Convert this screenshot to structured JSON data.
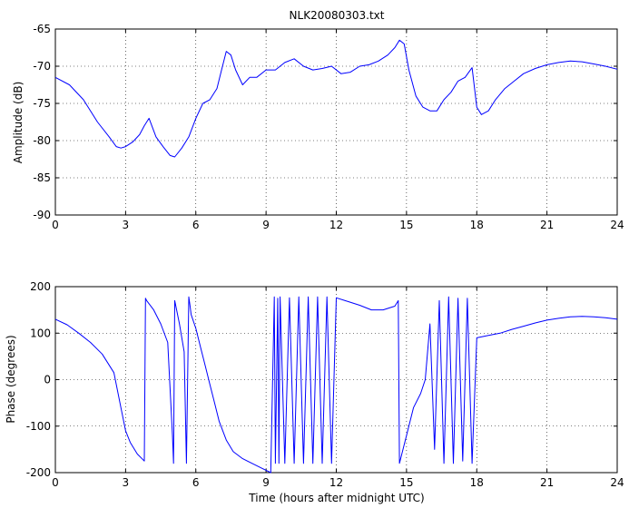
{
  "chart_data": [
    {
      "type": "line",
      "title": "NLK20080303.txt",
      "xlabel": "",
      "ylabel": "Amplitude (dB)",
      "xlim": [
        0,
        24
      ],
      "ylim": [
        -90,
        -65
      ],
      "x_ticks": [
        0,
        3,
        6,
        9,
        12,
        15,
        18,
        21,
        24
      ],
      "y_ticks": [
        -90,
        -85,
        -80,
        -75,
        -70,
        -65
      ],
      "grid": "dotted",
      "line_color": "#0000ff",
      "series": [
        {
          "x": [
            0,
            0.6,
            1.2,
            1.8,
            2.3,
            2.6,
            2.8,
            3.0,
            3.3,
            3.6,
            3.8,
            4.0,
            4.3,
            4.6,
            4.9,
            5.1,
            5.4,
            5.7,
            6.0,
            6.3,
            6.6,
            6.9,
            7.1,
            7.3,
            7.5,
            7.7,
            8.0,
            8.3,
            8.6,
            9.0,
            9.4,
            9.8,
            10.2,
            10.6,
            11.0,
            11.4,
            11.8,
            12.2,
            12.6,
            13.0,
            13.4,
            13.8,
            14.2,
            14.5,
            14.7,
            14.9,
            15.1,
            15.4,
            15.7,
            16.0,
            16.3,
            16.6,
            16.9,
            17.2,
            17.5,
            17.8,
            18.0,
            18.2,
            18.5,
            18.8,
            19.2,
            19.6,
            20.0,
            20.5,
            21.0,
            21.5,
            22.0,
            22.5,
            23.0,
            23.5,
            24.0
          ],
          "y": [
            -71.5,
            -72.5,
            -74.5,
            -77.5,
            -79.5,
            -80.8,
            -81,
            -80.8,
            -80.2,
            -79.2,
            -78,
            -77,
            -79.5,
            -80.8,
            -82,
            -82.2,
            -81,
            -79.5,
            -77,
            -75,
            -74.5,
            -73,
            -70.5,
            -68,
            -68.5,
            -70.5,
            -72.5,
            -71.5,
            -71.5,
            -70.5,
            -70.5,
            -69.5,
            -69,
            -70,
            -70.5,
            -70.3,
            -70,
            -71,
            -70.8,
            -70,
            -69.8,
            -69.3,
            -68.5,
            -67.5,
            -66.5,
            -67,
            -70.5,
            -74,
            -75.5,
            -76,
            -76,
            -74.5,
            -73.5,
            -72,
            -71.5,
            -70.2,
            -75.5,
            -76.5,
            -76,
            -74.5,
            -73,
            -72,
            -71,
            -70.3,
            -69.8,
            -69.5,
            -69.3,
            -69.4,
            -69.7,
            -70,
            -70.4
          ]
        }
      ]
    },
    {
      "type": "line",
      "title": "",
      "xlabel": "Time (hours after midnight UTC)",
      "ylabel": "Phase (degrees)",
      "xlim": [
        0,
        24
      ],
      "ylim": [
        -200,
        200
      ],
      "x_ticks": [
        0,
        3,
        6,
        9,
        12,
        15,
        18,
        21,
        24
      ],
      "y_ticks": [
        -200,
        -100,
        0,
        100,
        200
      ],
      "grid": "dotted",
      "line_color": "#0000ff",
      "series": [
        {
          "x": [
            0,
            0.5,
            1.0,
            1.5,
            2.0,
            2.5,
            2.8,
            3.0,
            3.2,
            3.5,
            3.8,
            3.85,
            3.9,
            4.2,
            4.5,
            4.8,
            5.0,
            5.05,
            5.1,
            5.3,
            5.5,
            5.6,
            5.7,
            5.75,
            5.8,
            6.0,
            6.2,
            6.4,
            6.6,
            6.8,
            7.0,
            7.3,
            7.6,
            8.0,
            8.4,
            8.8,
            9.2,
            9.35,
            9.4,
            9.5,
            9.55,
            9.6,
            9.8,
            10.0,
            10.2,
            10.4,
            10.6,
            10.8,
            11.0,
            11.2,
            11.4,
            11.6,
            11.8,
            12.0,
            12.5,
            13.0,
            13.5,
            14.0,
            14.5,
            14.65,
            14.7,
            14.75,
            15.0,
            15.3,
            15.6,
            15.8,
            16.0,
            16.2,
            16.4,
            16.6,
            16.8,
            17.0,
            17.2,
            17.4,
            17.6,
            17.8,
            18.0,
            18.5,
            19.0,
            19.5,
            20.0,
            20.5,
            21.0,
            21.5,
            22.0,
            22.5,
            23.0,
            23.5,
            24.0
          ],
          "y": [
            130,
            118,
            100,
            80,
            55,
            15,
            -60,
            -110,
            -135,
            -160,
            -175,
            175,
            170,
            150,
            120,
            80,
            -120,
            -180,
            170,
            120,
            60,
            -180,
            178,
            160,
            140,
            110,
            70,
            30,
            -10,
            -50,
            -90,
            -130,
            -155,
            -170,
            -180,
            -190,
            -200,
            178,
            -180,
            175,
            -180,
            178,
            -180,
            176,
            -180,
            178,
            -180,
            178,
            -180,
            178,
            -180,
            178,
            -180,
            176,
            168,
            160,
            150,
            150,
            158,
            170,
            -180,
            -170,
            -120,
            -60,
            -30,
            0,
            120,
            -150,
            170,
            -180,
            178,
            -180,
            175,
            -175,
            175,
            -180,
            90,
            95,
            100,
            108,
            115,
            122,
            128,
            132,
            135,
            136,
            135,
            133,
            130
          ]
        }
      ]
    }
  ]
}
